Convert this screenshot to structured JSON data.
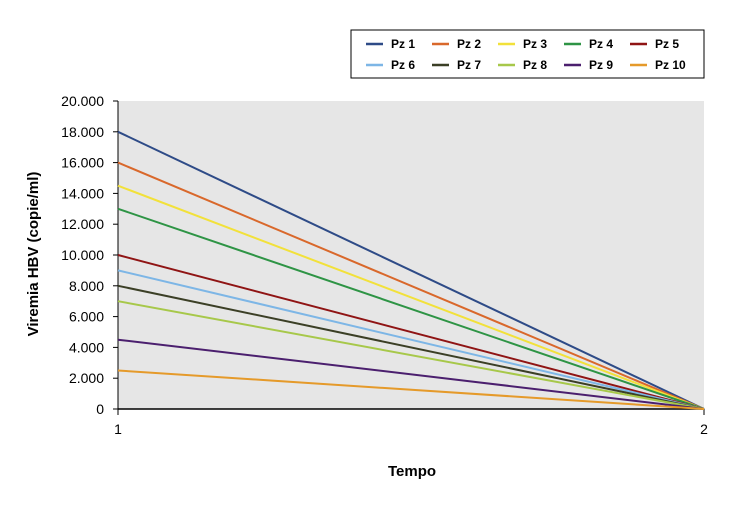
{
  "chart_data": {
    "type": "line",
    "title": "",
    "xlabel": "Tempo",
    "ylabel": "Viremia HBV (copie/ml)",
    "categories": [
      "1",
      "2"
    ],
    "x": [
      1,
      2
    ],
    "ylim": [
      0,
      20000
    ],
    "ytick_values": [
      0,
      2000,
      4000,
      6000,
      8000,
      10000,
      12000,
      14000,
      16000,
      18000,
      20000
    ],
    "ytick_labels": [
      "0",
      "2.000",
      "4.000",
      "6.000",
      "8.000",
      "10.000",
      "12.000",
      "14.000",
      "16.000",
      "18.000",
      "20.000"
    ],
    "grid": false,
    "plot_background": "#e6e6e6",
    "legend_position": "top-right",
    "series": [
      {
        "name": "Pz 1",
        "color": "#2e4b87",
        "values": [
          18000,
          0
        ]
      },
      {
        "name": "Pz 2",
        "color": "#d9682b",
        "values": [
          16000,
          0
        ]
      },
      {
        "name": "Pz 3",
        "color": "#f2e13a",
        "values": [
          14500,
          0
        ]
      },
      {
        "name": "Pz 4",
        "color": "#2e9445",
        "values": [
          13000,
          0
        ]
      },
      {
        "name": "Pz 5",
        "color": "#8f1414",
        "values": [
          10000,
          0
        ]
      },
      {
        "name": "Pz 6",
        "color": "#7db6e6",
        "values": [
          9000,
          0
        ]
      },
      {
        "name": "Pz 7",
        "color": "#3b3f26",
        "values": [
          8000,
          0
        ]
      },
      {
        "name": "Pz 8",
        "color": "#a7c84a",
        "values": [
          7000,
          0
        ]
      },
      {
        "name": "Pz 9",
        "color": "#4b1f6e",
        "values": [
          4500,
          0
        ]
      },
      {
        "name": "Pz 10",
        "color": "#e59a2a",
        "values": [
          2500,
          0
        ]
      }
    ]
  }
}
